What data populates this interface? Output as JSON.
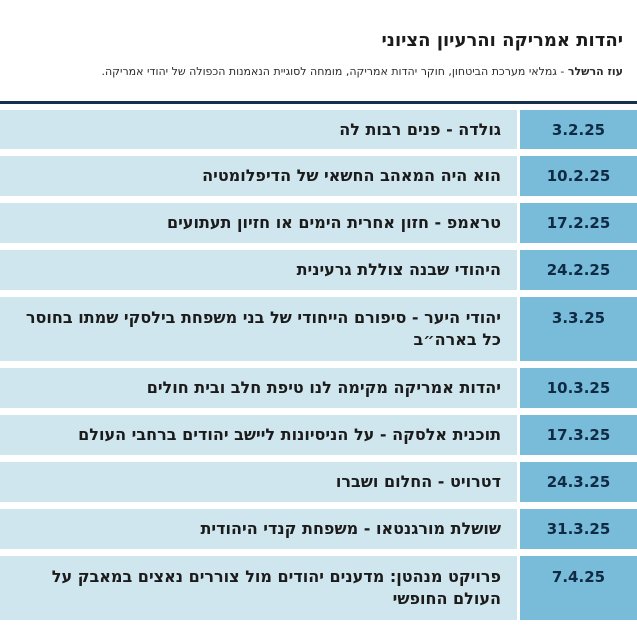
{
  "header": {
    "title": "יהדות אמריקה והרעיון הציוני",
    "presenter_name": "עוז הרשלר",
    "presenter_desc": " - גמלאי מערכת הביטחון, חוקר יהדות אמריקה, מומחה לסוגיית הנאמנות הכפולה של יהודי אמריקה."
  },
  "schedule": [
    {
      "date": "3.2.25",
      "topic": "גולדה - פנים רבות לה"
    },
    {
      "date": "10.2.25",
      "topic": "הוא היה המאהב החשאי של הדיפלומטיה"
    },
    {
      "date": "17.2.25",
      "topic": "טראמפ - חזון אחרית הימים או חזיון תעתועים"
    },
    {
      "date": "24.2.25",
      "topic": "היהודי שבנה צוללת גרעינית"
    },
    {
      "date": "3.3.25",
      "topic": "יהודי היער - סיפורם הייחודי של בני משפחת בילסקי שמתו בחוסר כל בארה״ב"
    },
    {
      "date": "10.3.25",
      "topic": "יהדות אמריקה מקימה לנו טיפת חלב ובית חולים"
    },
    {
      "date": "17.3.25",
      "topic": "תוכנית אלסקה - על הניסיונות ליישב יהודים ברחבי העולם"
    },
    {
      "date": "24.3.25",
      "topic": "דטרויט - החלום ושברו"
    },
    {
      "date": "31.3.25",
      "topic": "שושלת מורגנטאו - משפחת קנדי היהודית"
    },
    {
      "date": "7.4.25",
      "topic": "פרויקט מנהטן: מדענים יהודים מול צוררים נאצים במאבק על העולם החופשי"
    }
  ],
  "colors": {
    "date_cell": "#79bcd9",
    "topic_cell": "#cfe6ef",
    "rule": "#16304d"
  }
}
